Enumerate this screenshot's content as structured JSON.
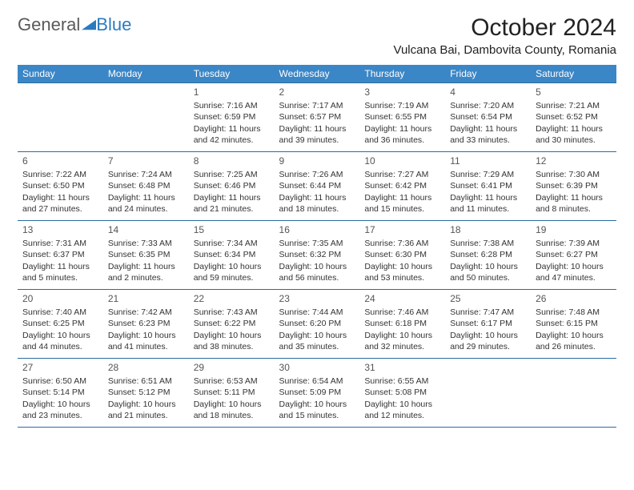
{
  "logo": {
    "text1": "General",
    "text2": "Blue"
  },
  "title": "October 2024",
  "location": "Vulcana Bai, Dambovita County, Romania",
  "colors": {
    "header_bg": "#3b86c6",
    "header_text": "#ffffff",
    "border": "#2b6aa3",
    "logo_gray": "#5a5a5a",
    "logo_blue": "#2b7bbf",
    "body_text": "#333333",
    "background": "#ffffff"
  },
  "daysOfWeek": [
    "Sunday",
    "Monday",
    "Tuesday",
    "Wednesday",
    "Thursday",
    "Friday",
    "Saturday"
  ],
  "weeks": [
    [
      null,
      null,
      {
        "n": "1",
        "sr": "7:16 AM",
        "ss": "6:59 PM",
        "dl": "11 hours and 42 minutes."
      },
      {
        "n": "2",
        "sr": "7:17 AM",
        "ss": "6:57 PM",
        "dl": "11 hours and 39 minutes."
      },
      {
        "n": "3",
        "sr": "7:19 AM",
        "ss": "6:55 PM",
        "dl": "11 hours and 36 minutes."
      },
      {
        "n": "4",
        "sr": "7:20 AM",
        "ss": "6:54 PM",
        "dl": "11 hours and 33 minutes."
      },
      {
        "n": "5",
        "sr": "7:21 AM",
        "ss": "6:52 PM",
        "dl": "11 hours and 30 minutes."
      }
    ],
    [
      {
        "n": "6",
        "sr": "7:22 AM",
        "ss": "6:50 PM",
        "dl": "11 hours and 27 minutes."
      },
      {
        "n": "7",
        "sr": "7:24 AM",
        "ss": "6:48 PM",
        "dl": "11 hours and 24 minutes."
      },
      {
        "n": "8",
        "sr": "7:25 AM",
        "ss": "6:46 PM",
        "dl": "11 hours and 21 minutes."
      },
      {
        "n": "9",
        "sr": "7:26 AM",
        "ss": "6:44 PM",
        "dl": "11 hours and 18 minutes."
      },
      {
        "n": "10",
        "sr": "7:27 AM",
        "ss": "6:42 PM",
        "dl": "11 hours and 15 minutes."
      },
      {
        "n": "11",
        "sr": "7:29 AM",
        "ss": "6:41 PM",
        "dl": "11 hours and 11 minutes."
      },
      {
        "n": "12",
        "sr": "7:30 AM",
        "ss": "6:39 PM",
        "dl": "11 hours and 8 minutes."
      }
    ],
    [
      {
        "n": "13",
        "sr": "7:31 AM",
        "ss": "6:37 PM",
        "dl": "11 hours and 5 minutes."
      },
      {
        "n": "14",
        "sr": "7:33 AM",
        "ss": "6:35 PM",
        "dl": "11 hours and 2 minutes."
      },
      {
        "n": "15",
        "sr": "7:34 AM",
        "ss": "6:34 PM",
        "dl": "10 hours and 59 minutes."
      },
      {
        "n": "16",
        "sr": "7:35 AM",
        "ss": "6:32 PM",
        "dl": "10 hours and 56 minutes."
      },
      {
        "n": "17",
        "sr": "7:36 AM",
        "ss": "6:30 PM",
        "dl": "10 hours and 53 minutes."
      },
      {
        "n": "18",
        "sr": "7:38 AM",
        "ss": "6:28 PM",
        "dl": "10 hours and 50 minutes."
      },
      {
        "n": "19",
        "sr": "7:39 AM",
        "ss": "6:27 PM",
        "dl": "10 hours and 47 minutes."
      }
    ],
    [
      {
        "n": "20",
        "sr": "7:40 AM",
        "ss": "6:25 PM",
        "dl": "10 hours and 44 minutes."
      },
      {
        "n": "21",
        "sr": "7:42 AM",
        "ss": "6:23 PM",
        "dl": "10 hours and 41 minutes."
      },
      {
        "n": "22",
        "sr": "7:43 AM",
        "ss": "6:22 PM",
        "dl": "10 hours and 38 minutes."
      },
      {
        "n": "23",
        "sr": "7:44 AM",
        "ss": "6:20 PM",
        "dl": "10 hours and 35 minutes."
      },
      {
        "n": "24",
        "sr": "7:46 AM",
        "ss": "6:18 PM",
        "dl": "10 hours and 32 minutes."
      },
      {
        "n": "25",
        "sr": "7:47 AM",
        "ss": "6:17 PM",
        "dl": "10 hours and 29 minutes."
      },
      {
        "n": "26",
        "sr": "7:48 AM",
        "ss": "6:15 PM",
        "dl": "10 hours and 26 minutes."
      }
    ],
    [
      {
        "n": "27",
        "sr": "6:50 AM",
        "ss": "5:14 PM",
        "dl": "10 hours and 23 minutes."
      },
      {
        "n": "28",
        "sr": "6:51 AM",
        "ss": "5:12 PM",
        "dl": "10 hours and 21 minutes."
      },
      {
        "n": "29",
        "sr": "6:53 AM",
        "ss": "5:11 PM",
        "dl": "10 hours and 18 minutes."
      },
      {
        "n": "30",
        "sr": "6:54 AM",
        "ss": "5:09 PM",
        "dl": "10 hours and 15 minutes."
      },
      {
        "n": "31",
        "sr": "6:55 AM",
        "ss": "5:08 PM",
        "dl": "10 hours and 12 minutes."
      },
      null,
      null
    ]
  ],
  "labels": {
    "sunrise": "Sunrise:",
    "sunset": "Sunset:",
    "daylight": "Daylight:"
  }
}
